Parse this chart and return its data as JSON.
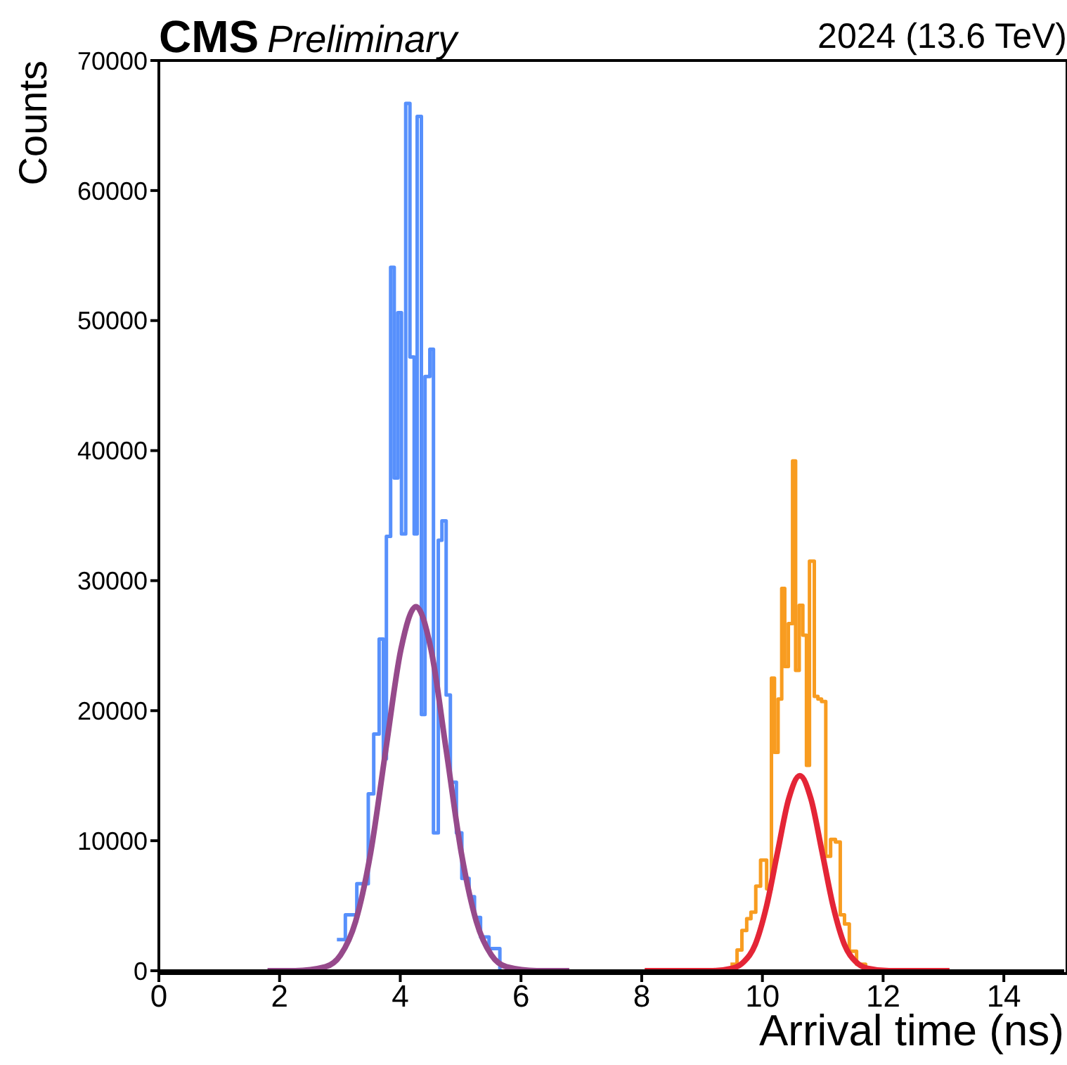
{
  "chart_data": {
    "type": "step",
    "title": "CMS",
    "subtitle": "Preliminary",
    "annotations": [
      "2024 (13.6 TeV)"
    ],
    "xlabel": "Arrival time (ns)",
    "ylabel": "Counts",
    "xlim": [
      0,
      15
    ],
    "xticks": [
      0,
      2,
      4,
      6,
      8,
      10,
      12,
      14
    ],
    "ylim": [
      0,
      70000
    ],
    "yticks": [
      0,
      10000,
      20000,
      30000,
      40000,
      50000,
      60000,
      70000
    ],
    "grid": false,
    "legend": false,
    "marker": "none",
    "series": [
      {
        "color": "#5790fc",
        "x": [
          2.95,
          3.09,
          3.28,
          3.47,
          3.56,
          3.65,
          3.72,
          3.77,
          3.84,
          3.9,
          3.96,
          4.02,
          4.09,
          4.16,
          4.23,
          4.28,
          4.35,
          4.41,
          4.49,
          4.55,
          4.63,
          4.69,
          4.76,
          4.83,
          4.93,
          5.02,
          5.14,
          5.23,
          5.33,
          5.47,
          5.65
        ],
        "values": [
          2400,
          4300,
          6700,
          13600,
          18200,
          25500,
          16300,
          33400,
          54100,
          37900,
          50600,
          33600,
          66700,
          47200,
          33600,
          65700,
          19700,
          45700,
          47800,
          10600,
          33100,
          34600,
          21200,
          14500,
          10600,
          7100,
          5700,
          4100,
          2600,
          1700,
          0
        ]
      },
      {
        "color": "#f89c20",
        "x": [
          9.47,
          9.58,
          9.66,
          9.74,
          9.81,
          9.89,
          9.97,
          10.07,
          10.15,
          10.2,
          10.26,
          10.32,
          10.37,
          10.43,
          10.5,
          10.55,
          10.61,
          10.67,
          10.73,
          10.78,
          10.86,
          10.92,
          10.98,
          11.05,
          11.13,
          11.21,
          11.29,
          11.36,
          11.44,
          11.56,
          11.71
        ],
        "values": [
          500,
          1600,
          3100,
          4000,
          4500,
          6500,
          8500,
          6300,
          22500,
          16800,
          20900,
          29400,
          23400,
          26700,
          39200,
          23100,
          28100,
          25800,
          15800,
          31500,
          21100,
          20900,
          20700,
          8800,
          10100,
          9900,
          4300,
          3600,
          1500,
          500,
          0
        ]
      },
      {
        "type": "line",
        "color": "#964a8b",
        "x": [
          1.8,
          2.26,
          2.76,
          3.01,
          3.26,
          3.51,
          3.76,
          4.01,
          4.26,
          4.51,
          4.76,
          5.01,
          5.26,
          5.51,
          5.76,
          6.26,
          6.8
        ],
        "values": [
          0,
          0,
          300,
          1200,
          3800,
          9100,
          17000,
          24700,
          28000,
          24700,
          17000,
          9100,
          3800,
          1200,
          300,
          0,
          0
        ]
      },
      {
        "type": "line",
        "color": "#e42536",
        "x": [
          8.05,
          9.14,
          9.51,
          9.695,
          9.88,
          10.065,
          10.25,
          10.435,
          10.62,
          10.805,
          10.99,
          11.175,
          11.36,
          11.545,
          11.73,
          12.1,
          13.1
        ],
        "values": [
          0,
          0,
          200,
          700,
          2000,
          4900,
          9100,
          13200,
          15000,
          13200,
          9100,
          4900,
          2000,
          700,
          200,
          0,
          0
        ]
      }
    ]
  }
}
